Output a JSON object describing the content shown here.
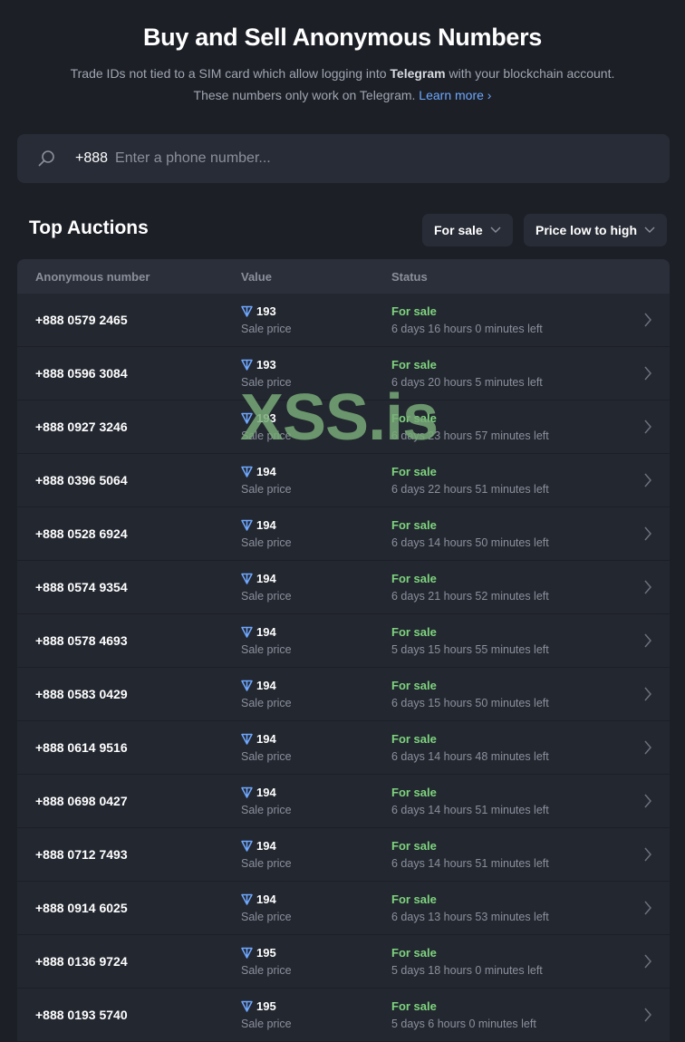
{
  "header": {
    "title": "Buy and Sell Anonymous Numbers",
    "desc_pre": "Trade IDs not tied to a SIM card which allow logging into ",
    "desc_bold": "Telegram",
    "desc_post": " with your blockchain account.",
    "desc2": "These numbers only work on Telegram. ",
    "learn_more": "Learn more"
  },
  "search": {
    "prefix": "+888",
    "placeholder": "Enter a phone number..."
  },
  "section": {
    "title": "Top Auctions",
    "filter": "For sale",
    "sort": "Price low to high"
  },
  "table": {
    "columns": [
      "Anonymous number",
      "Value",
      "Status"
    ],
    "rows": [
      {
        "number": "+888 0579 2465",
        "value": "193",
        "value_label": "Sale price",
        "status": "For sale",
        "time": "6 days 16 hours 0 minutes left"
      },
      {
        "number": "+888 0596 3084",
        "value": "193",
        "value_label": "Sale price",
        "status": "For sale",
        "time": "6 days 20 hours 5 minutes left"
      },
      {
        "number": "+888 0927 3246",
        "value": "193",
        "value_label": "Sale price",
        "status": "For sale",
        "time": "6 days 23 hours 57 minutes left"
      },
      {
        "number": "+888 0396 5064",
        "value": "194",
        "value_label": "Sale price",
        "status": "For sale",
        "time": "6 days 22 hours 51 minutes left"
      },
      {
        "number": "+888 0528 6924",
        "value": "194",
        "value_label": "Sale price",
        "status": "For sale",
        "time": "6 days 14 hours 50 minutes left"
      },
      {
        "number": "+888 0574 9354",
        "value": "194",
        "value_label": "Sale price",
        "status": "For sale",
        "time": "6 days 21 hours 52 minutes left"
      },
      {
        "number": "+888 0578 4693",
        "value": "194",
        "value_label": "Sale price",
        "status": "For sale",
        "time": "5 days 15 hours 55 minutes left"
      },
      {
        "number": "+888 0583 0429",
        "value": "194",
        "value_label": "Sale price",
        "status": "For sale",
        "time": "6 days 15 hours 50 minutes left"
      },
      {
        "number": "+888 0614 9516",
        "value": "194",
        "value_label": "Sale price",
        "status": "For sale",
        "time": "6 days 14 hours 48 minutes left"
      },
      {
        "number": "+888 0698 0427",
        "value": "194",
        "value_label": "Sale price",
        "status": "For sale",
        "time": "6 days 14 hours 51 minutes left"
      },
      {
        "number": "+888 0712 7493",
        "value": "194",
        "value_label": "Sale price",
        "status": "For sale",
        "time": "6 days 14 hours 51 minutes left"
      },
      {
        "number": "+888 0914 6025",
        "value": "194",
        "value_label": "Sale price",
        "status": "For sale",
        "time": "6 days 13 hours 53 minutes left"
      },
      {
        "number": "+888 0136 9724",
        "value": "195",
        "value_label": "Sale price",
        "status": "For sale",
        "time": "5 days 18 hours 0 minutes left"
      },
      {
        "number": "+888 0193 5740",
        "value": "195",
        "value_label": "Sale price",
        "status": "For sale",
        "time": "5 days 6 hours 0 minutes left"
      }
    ]
  },
  "watermark": "XSS.is",
  "colors": {
    "accent": "#6ea8ff",
    "status": "#7ed47e",
    "background": "#1c1f26"
  }
}
